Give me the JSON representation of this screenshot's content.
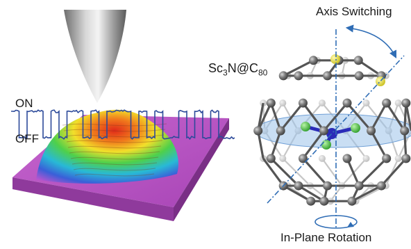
{
  "labels": {
    "on": "ON",
    "off": "OFF",
    "molecule": {
      "part1": "Sc",
      "sub1": "3",
      "part2": "N@C",
      "sub2": "80"
    },
    "axis_switching": "Axis Switching",
    "in_plane_rotation": "In-Plane Rotation"
  },
  "signal": {
    "levels": [
      "on",
      "off"
    ],
    "pulse_pattern": [
      1,
      0,
      1,
      1,
      0,
      1,
      0,
      1,
      1,
      0,
      1,
      0,
      1,
      1,
      1,
      0,
      1,
      0,
      1,
      0,
      0,
      1,
      0,
      1,
      0,
      1,
      0,
      0
    ]
  },
  "colors": {
    "signal_trace": "#2c4a9a",
    "axis_line": "#2f6db5",
    "substrate": "#c054c6",
    "carbon_atom": "#6b6b6b",
    "scandium_atom": "#3fbf3a",
    "nitrogen_atom": "#2b2bb8",
    "highlight_atom": "#e8e23a",
    "plane": "#9cc3ea"
  },
  "icons": [
    "stm-tip-icon",
    "rotation-arrow-icon",
    "switching-arrow-icon"
  ]
}
